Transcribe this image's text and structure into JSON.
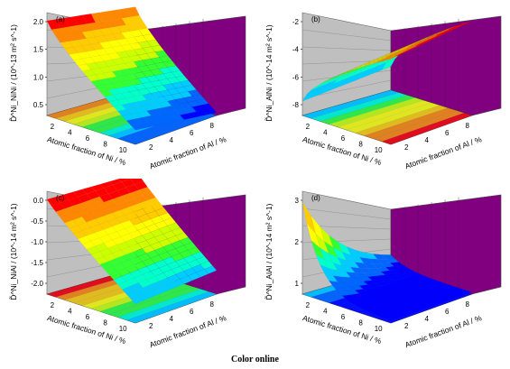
{
  "caption": "Color online",
  "chart_data": [
    {
      "type": "surface",
      "panel": "(a)",
      "zlabel": "D̃^Ni_NiNi / (10^-13 m² s^-1)",
      "zticks": [
        "2.0",
        "1.5",
        "1.0",
        "0.5"
      ],
      "zlim": [
        0.3,
        2.1
      ],
      "xlabel": "Atomic fraction of Ni / %",
      "xticks": [
        "2",
        "4",
        "6",
        "8",
        "10"
      ],
      "ylabel": "Atomic fraction of Al / %",
      "yticks": [
        "2",
        "4",
        "6",
        "8"
      ],
      "trend": "decreasing with Ni fraction; high at low Ni, low Al"
    },
    {
      "type": "surface",
      "panel": "(b)",
      "zlabel": "D̃^Ni_AlNi / (10^-14 m² s^-1)",
      "zticks": [
        "-2",
        "-4",
        "-6",
        "-8"
      ],
      "zlim": [
        -8.5,
        -1
      ],
      "xlabel": "Atomic fraction of Ni / %",
      "xticks": [
        "2",
        "4",
        "6",
        "8",
        "10"
      ],
      "ylabel": "Atomic fraction of Al / %",
      "yticks": [
        "2",
        "4",
        "6",
        "8"
      ],
      "trend": "increasing toward high Ni / high Al corner"
    },
    {
      "type": "surface",
      "panel": "(c)",
      "zlabel": "D̃^Ni_NiAl / (10^-14 m² s^-1)",
      "zticks": [
        "0.0",
        "-0.5",
        "-1.0",
        "-1.5",
        "-2.0"
      ],
      "zlim": [
        -2.1,
        0
      ],
      "xlabel": "Atomic fraction of Ni / %",
      "xticks": [
        "2",
        "4",
        "6",
        "8",
        "10"
      ],
      "ylabel": "Atomic fraction of Al / %",
      "yticks": [
        "2",
        "4",
        "6",
        "8"
      ],
      "trend": "highest at low Ni, decreasing toward high Ni"
    },
    {
      "type": "surface",
      "panel": "(d)",
      "zlabel": "D̃^Ni_AlAl / (10^-14 m² s^-1)",
      "zticks": [
        "3",
        "2",
        "1"
      ],
      "zlim": [
        0.6,
        3.6
      ],
      "xlabel": "Atomic fraction of Ni / %",
      "xticks": [
        "2",
        "4",
        "6",
        "8",
        "10"
      ],
      "ylabel": "Atomic fraction of Al / %",
      "yticks": [
        "2",
        "4",
        "6",
        "8"
      ],
      "trend": "sharp peak at low Ni and low Al, flat low values elsewhere"
    }
  ],
  "colors": {
    "purple_wall": "#800080",
    "grey_wall": "#bfbfbf",
    "bands": [
      "#0000ff",
      "#0066ff",
      "#00ccff",
      "#00ffcc",
      "#33ff33",
      "#ccff00",
      "#ffff00",
      "#ffcc00",
      "#ff8800",
      "#ff0000"
    ]
  }
}
